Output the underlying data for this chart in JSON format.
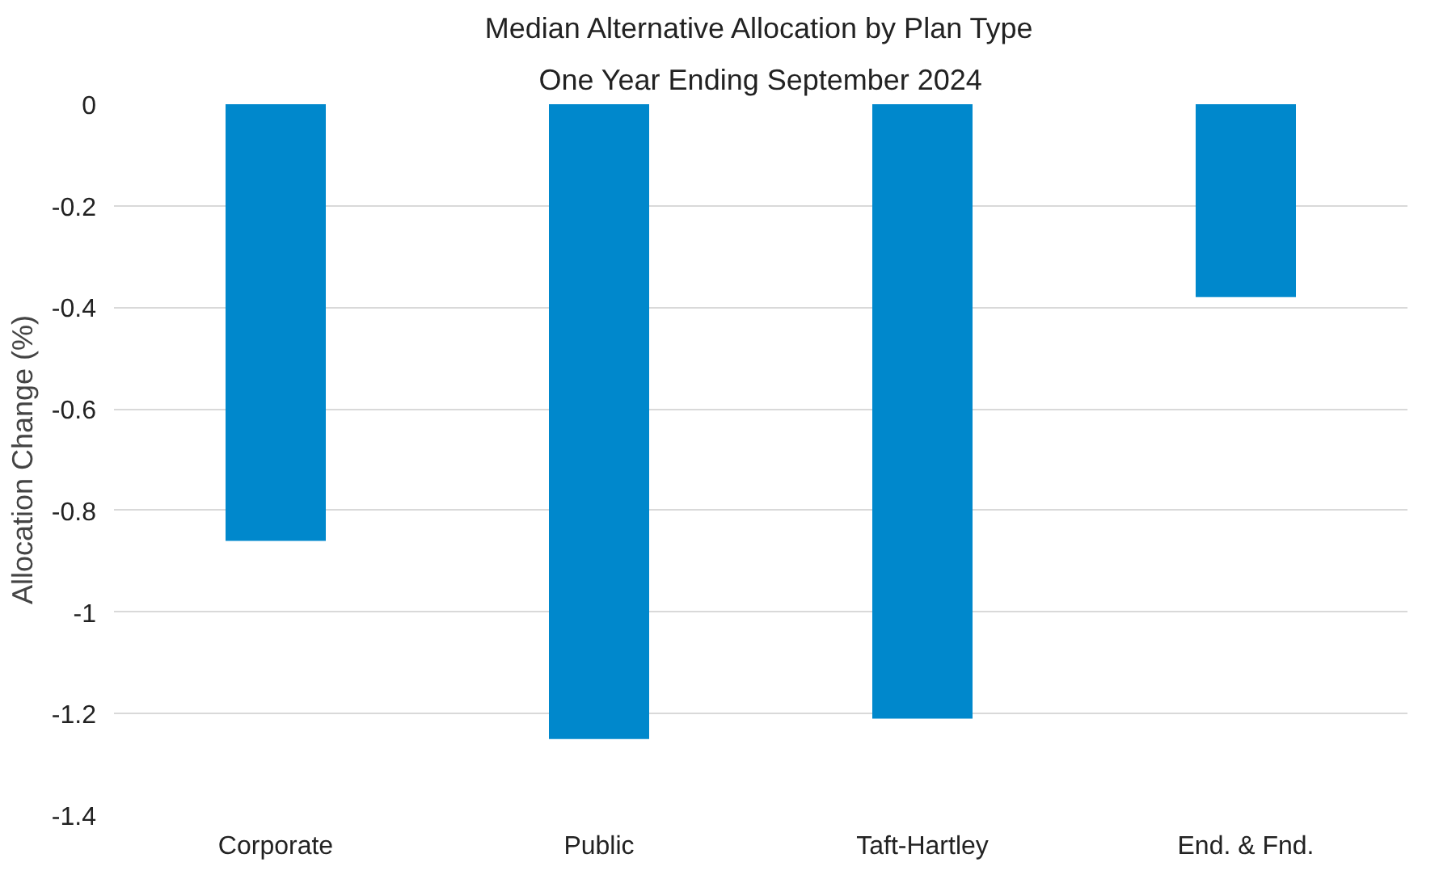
{
  "chart_data": {
    "type": "bar",
    "title": "Median Alternative Allocation by Plan Type",
    "subtitle": "One Year Ending September 2024",
    "ylabel": "Allocation Change (%)",
    "categories": [
      "Corporate",
      "Public",
      "Taft-Hartley",
      "End. & Fnd."
    ],
    "values": [
      -0.86,
      -1.25,
      -1.21,
      -0.38
    ],
    "color": "#0088cc",
    "ylim": [
      -1.4,
      0
    ],
    "yticks": [
      0,
      -0.2,
      -0.4,
      -0.6,
      -0.8,
      -1,
      -1.2,
      -1.4
    ],
    "grid": "y"
  }
}
